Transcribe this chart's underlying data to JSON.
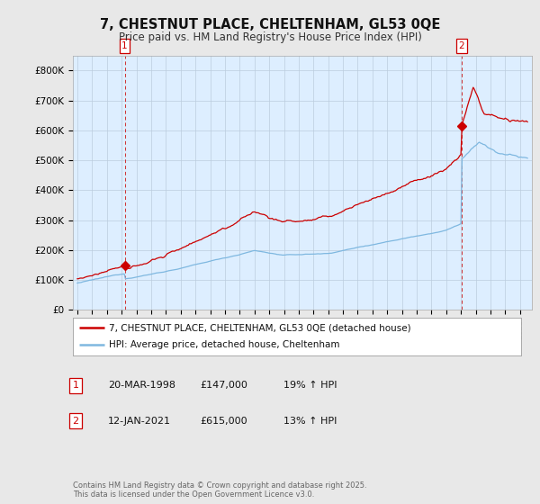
{
  "title": "7, CHESTNUT PLACE, CHELTENHAM, GL53 0QE",
  "subtitle": "Price paid vs. HM Land Registry's House Price Index (HPI)",
  "ylim": [
    0,
    850000
  ],
  "yticks": [
    0,
    100000,
    200000,
    300000,
    400000,
    500000,
    600000,
    700000,
    800000
  ],
  "ytick_labels": [
    "£0",
    "£100K",
    "£200K",
    "£300K",
    "£400K",
    "£500K",
    "£600K",
    "£700K",
    "£800K"
  ],
  "red_color": "#cc0000",
  "blue_color": "#7fb8e0",
  "background_color": "#e8e8e8",
  "plot_background": "#ddeeff",
  "grid_color": "#bbccdd",
  "legend_label_red": "7, CHESTNUT PLACE, CHELTENHAM, GL53 0QE (detached house)",
  "legend_label_blue": "HPI: Average price, detached house, Cheltenham",
  "annotation1_label": "1",
  "annotation1_date": "20-MAR-1998",
  "annotation1_price": "£147,000",
  "annotation1_hpi": "19% ↑ HPI",
  "annotation2_label": "2",
  "annotation2_date": "12-JAN-2021",
  "annotation2_price": "£615,000",
  "annotation2_hpi": "13% ↑ HPI",
  "footer": "Contains HM Land Registry data © Crown copyright and database right 2025.\nThis data is licensed under the Open Government Licence v3.0.",
  "sale1_year": 1998.21,
  "sale1_price": 147000,
  "sale2_year": 2021.04,
  "sale2_price": 615000
}
